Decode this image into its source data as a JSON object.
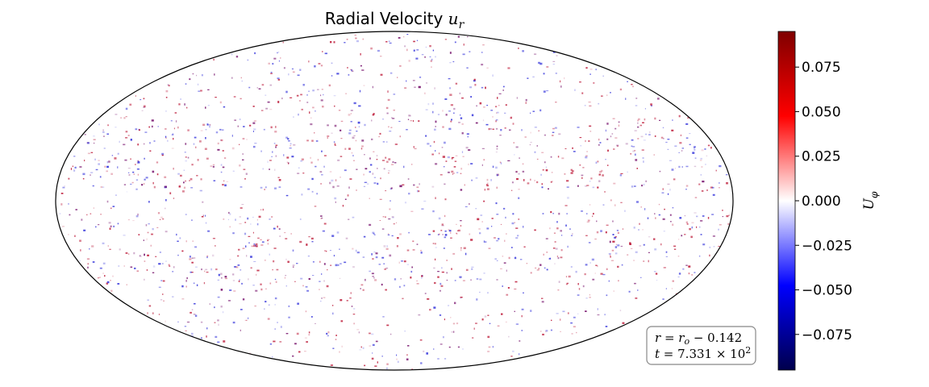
{
  "chart_data": {
    "type": "heatmap",
    "projection": "mollweide",
    "title": "Radial Velocity u_r",
    "title_text": "Radial Velocity",
    "title_symbol": "u",
    "title_subscript": "r",
    "colormap": "seismic",
    "colormap_colors": [
      "#00004c",
      "#0000ff",
      "#ffffff",
      "#ff0000",
      "#7f0000"
    ],
    "colorbar": {
      "label": "U_φ",
      "label_symbol": "U",
      "label_subscript": "φ",
      "vmin": -0.095,
      "vmax": 0.095,
      "ticks": [
        -0.075,
        -0.05,
        -0.025,
        0.0,
        0.025,
        0.05,
        0.075
      ],
      "tick_labels": [
        "−0.075",
        "−0.050",
        "−0.025",
        "0.000",
        "0.025",
        "0.050",
        "0.075"
      ]
    },
    "annotation": {
      "line1": "r = r_o − 0.142",
      "line2": "t = 7.331 × 10^2"
    },
    "grid": false,
    "legend": "none"
  }
}
